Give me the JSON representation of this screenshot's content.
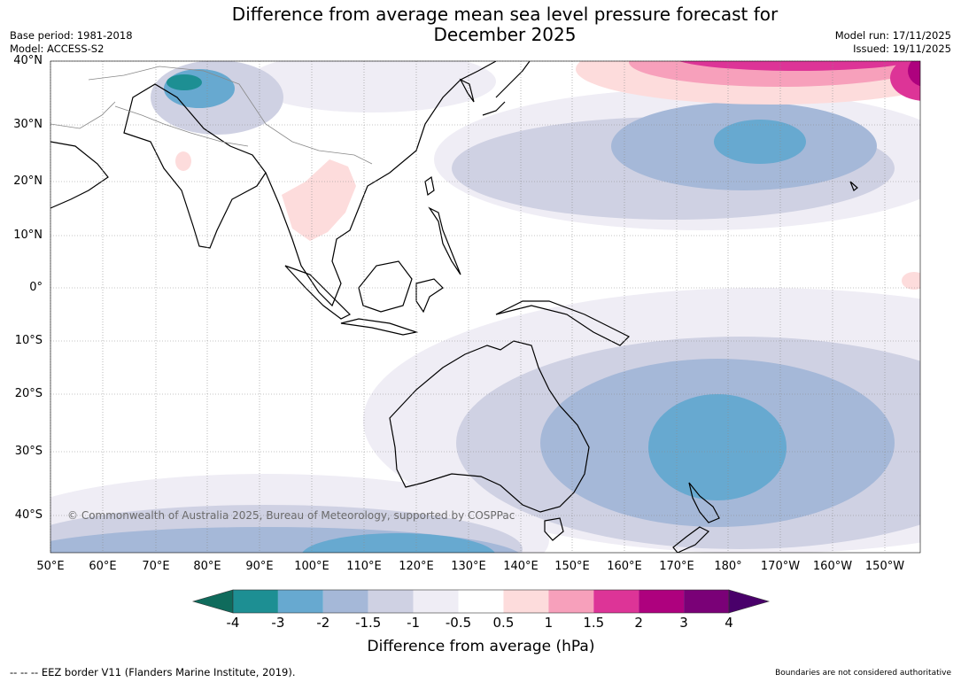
{
  "title_line1": "Difference from average mean sea level pressure forecast for",
  "title_line2": "December 2025",
  "base_period": "Base period: 1981-2018",
  "model": "Model: ACCESS-S2",
  "model_run": "Model run: 17/11/2025",
  "issued": "Issued: 19/11/2025",
  "lat_labels": [
    "40°N",
    "30°N",
    "20°N",
    "10°N",
    "0°",
    "10°S",
    "20°S",
    "30°S",
    "40°S"
  ],
  "lon_labels": [
    "50°E",
    "60°E",
    "70°E",
    "80°E",
    "90°E",
    "100°E",
    "110°E",
    "120°E",
    "130°E",
    "140°E",
    "150°E",
    "160°E",
    "170°E",
    "180°",
    "170°W",
    "160°W",
    "150°W"
  ],
  "copyright": "© Commonwealth of Australia 2025, Bureau of Meteorology, supported by COSPPac",
  "legend": {
    "title": "Difference from average (hPa)",
    "ticks": [
      "-4",
      "-3",
      "-2",
      "-1.5",
      "-1",
      "-0.5",
      "0.5",
      "1",
      "1.5",
      "2",
      "3",
      "4"
    ],
    "colors": [
      "#1d8f93",
      "#67a9d0",
      "#a5b8d8",
      "#cfd1e3",
      "#efedf5",
      "#ffffff",
      "#fddcdc",
      "#f7a0bb",
      "#dd3497",
      "#ae017e",
      "#7a0177"
    ],
    "extend_low_color": "#0f6b5c",
    "extend_high_color": "#49006a"
  },
  "footer_left": "--  --  -- EEZ border V11 (Flanders Marine Institute, 2019).",
  "footer_right": "Boundaries are not considered authoritative"
}
